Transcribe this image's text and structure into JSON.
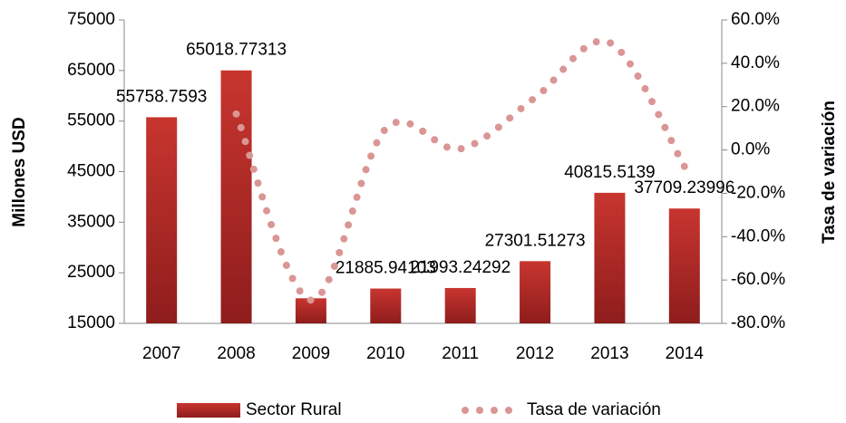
{
  "chart_data": {
    "type": "bar-line",
    "categories": [
      "2007",
      "2008",
      "2009",
      "2010",
      "2011",
      "2012",
      "2013",
      "2014"
    ],
    "series": [
      {
        "name": "Sector Rural",
        "type": "bar",
        "color": "#b22a28",
        "values": [
          55758.7593,
          65018.77313,
          19960,
          21885.94103,
          21993.24292,
          27301.51273,
          40815.5139,
          37709.23996
        ],
        "value_labels": [
          "55758.7593",
          "65018.77313",
          null,
          "21885.94103",
          "21993.24292",
          "27301.51273",
          "40815.5139",
          "37709.23996"
        ]
      },
      {
        "name": "Tasa de variación",
        "type": "line",
        "axis": "y2",
        "color": "#d99694",
        "values": [
          null,
          16.6,
          -69.3,
          9.7,
          0.5,
          24.1,
          49.5,
          -7.6
        ]
      }
    ],
    "ylabel": "Millones USD",
    "y2label": "Tasa de variación",
    "ylim": [
      15000,
      75000
    ],
    "yticks": [
      15000,
      25000,
      35000,
      45000,
      55000,
      65000,
      75000
    ],
    "y2lim": [
      -80,
      60
    ],
    "y2ticks": [
      {
        "value": -80,
        "label": "-80.0%"
      },
      {
        "value": -60,
        "label": "-60.0%"
      },
      {
        "value": -40,
        "label": "-40.0%"
      },
      {
        "value": -20,
        "label": "-20.0%"
      },
      {
        "value": 0,
        "label": "0.0%"
      },
      {
        "value": 20,
        "label": "20.0%"
      },
      {
        "value": 40,
        "label": "40.0%"
      },
      {
        "value": 60,
        "label": "60.0%"
      }
    ],
    "legend": "bottom"
  }
}
